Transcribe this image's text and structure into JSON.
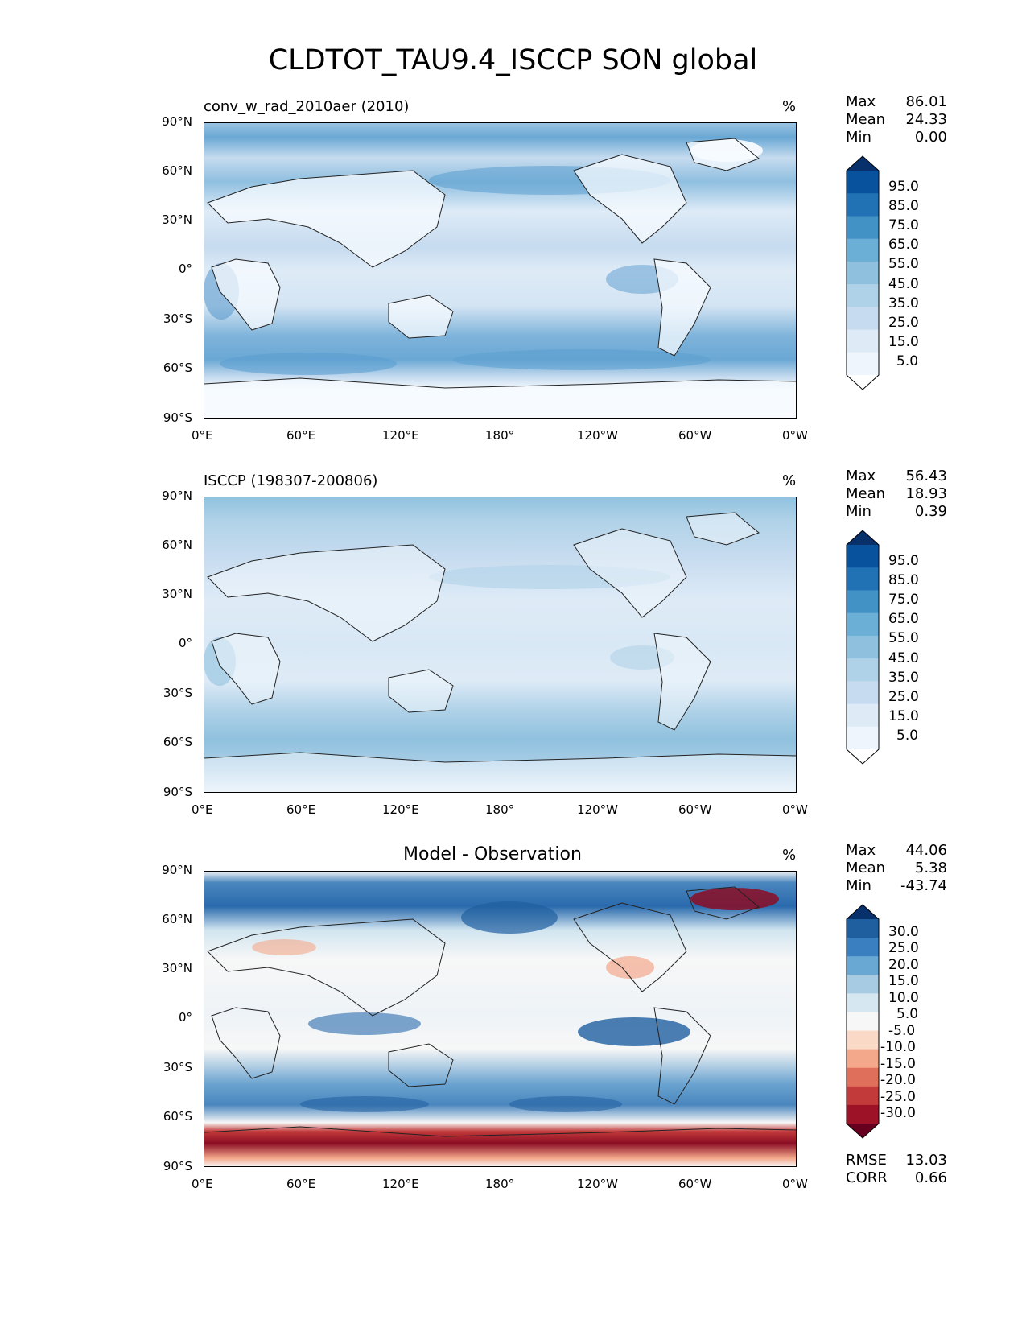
{
  "figure": {
    "title": "CLDTOT_TAU9.4_ISCCP SON global"
  },
  "axes": {
    "lat_ticks": [
      "90°N",
      "60°N",
      "30°N",
      "0°",
      "30°S",
      "60°S",
      "90°S"
    ],
    "lon_ticks": [
      "0°E",
      "60°E",
      "120°E",
      "180°",
      "120°W",
      "60°W",
      "0°W"
    ]
  },
  "panels": [
    {
      "left_label": "conv_w_rad_2010aer (2010)",
      "center_label": "",
      "unit": "%",
      "stats": [
        {
          "key": "Max",
          "value": "86.01"
        },
        {
          "key": "Mean",
          "value": "24.33"
        },
        {
          "key": "Min",
          "value": "0.00"
        }
      ],
      "colorbar": {
        "labels": [
          "95.0",
          "85.0",
          "75.0",
          "65.0",
          "55.0",
          "45.0",
          "35.0",
          "25.0",
          "15.0",
          "5.0"
        ],
        "colors": [
          "#08306b",
          "#08519c",
          "#2171b5",
          "#4292c6",
          "#6baed6",
          "#8fc1de",
          "#b0d2e8",
          "#c6dbef",
          "#deebf7",
          "#eef5fc",
          "#ffffff"
        ]
      }
    },
    {
      "left_label": "ISCCP (198307-200806)",
      "center_label": "",
      "unit": "%",
      "stats": [
        {
          "key": "Max",
          "value": "56.43"
        },
        {
          "key": "Mean",
          "value": "18.93"
        },
        {
          "key": "Min",
          "value": "0.39"
        }
      ],
      "colorbar": {
        "labels": [
          "95.0",
          "85.0",
          "75.0",
          "65.0",
          "55.0",
          "45.0",
          "35.0",
          "25.0",
          "15.0",
          "5.0"
        ],
        "colors": [
          "#08306b",
          "#08519c",
          "#2171b5",
          "#4292c6",
          "#6baed6",
          "#8fc1de",
          "#b0d2e8",
          "#c6dbef",
          "#deebf7",
          "#eef5fc",
          "#ffffff"
        ]
      }
    },
    {
      "left_label": "",
      "center_label": "Model - Observation",
      "unit": "%",
      "stats": [
        {
          "key": "Max",
          "value": "44.06"
        },
        {
          "key": "Mean",
          "value": "5.38"
        },
        {
          "key": "Min",
          "value": "-43.74"
        }
      ],
      "footer_stats": [
        {
          "key": "RMSE",
          "value": "13.03"
        },
        {
          "key": "CORR",
          "value": "0.66"
        }
      ],
      "colorbar": {
        "labels": [
          "30.0",
          "25.0",
          "20.0",
          "15.0",
          "10.0",
          "5.0",
          "-5.0",
          "-10.0",
          "-15.0",
          "-20.0",
          "-25.0",
          "-30.0"
        ],
        "colors": [
          "#08306b",
          "#1f5fa0",
          "#3a7fbf",
          "#6aa8d4",
          "#a7cbe3",
          "#d7e7f1",
          "#f7f7f7",
          "#fbd9c7",
          "#f3a88b",
          "#df6f5a",
          "#c23a3a",
          "#9e1228",
          "#67001f"
        ]
      }
    }
  ],
  "chart_data": [
    {
      "type": "heatmap",
      "title": "conv_w_rad_2010aer (2010)",
      "variable": "CLDTOT_TAU9.4_ISCCP",
      "season": "SON",
      "unit": "%",
      "x_ticks": [
        "0°E",
        "60°E",
        "120°E",
        "180°",
        "120°W",
        "60°W",
        "0°W"
      ],
      "y_ticks": [
        "90°N",
        "60°N",
        "30°N",
        "0°",
        "30°S",
        "60°S",
        "90°S"
      ],
      "xlim": [
        0,
        360
      ],
      "ylim": [
        -90,
        90
      ],
      "levels": [
        5,
        15,
        25,
        35,
        45,
        55,
        65,
        75,
        85,
        95
      ],
      "max": 86.01,
      "mean": 24.33,
      "min": 0.0
    },
    {
      "type": "heatmap",
      "title": "ISCCP (198307-200806)",
      "variable": "CLDTOT_TAU9.4_ISCCP",
      "season": "SON",
      "unit": "%",
      "x_ticks": [
        "0°E",
        "60°E",
        "120°E",
        "180°",
        "120°W",
        "60°W",
        "0°W"
      ],
      "y_ticks": [
        "90°N",
        "60°N",
        "30°N",
        "0°",
        "30°S",
        "60°S",
        "90°S"
      ],
      "xlim": [
        0,
        360
      ],
      "ylim": [
        -90,
        90
      ],
      "levels": [
        5,
        15,
        25,
        35,
        45,
        55,
        65,
        75,
        85,
        95
      ],
      "max": 56.43,
      "mean": 18.93,
      "min": 0.39
    },
    {
      "type": "heatmap",
      "title": "Model - Observation",
      "variable": "CLDTOT_TAU9.4_ISCCP",
      "season": "SON",
      "unit": "%",
      "x_ticks": [
        "0°E",
        "60°E",
        "120°E",
        "180°",
        "120°W",
        "60°W",
        "0°W"
      ],
      "y_ticks": [
        "90°N",
        "60°N",
        "30°N",
        "0°",
        "30°S",
        "60°S",
        "90°S"
      ],
      "xlim": [
        0,
        360
      ],
      "ylim": [
        -90,
        90
      ],
      "levels": [
        -30,
        -25,
        -20,
        -15,
        -10,
        -5,
        5,
        10,
        15,
        20,
        25,
        30
      ],
      "max": 44.06,
      "mean": 5.38,
      "min": -43.74,
      "rmse": 13.03,
      "corr": 0.66
    }
  ]
}
